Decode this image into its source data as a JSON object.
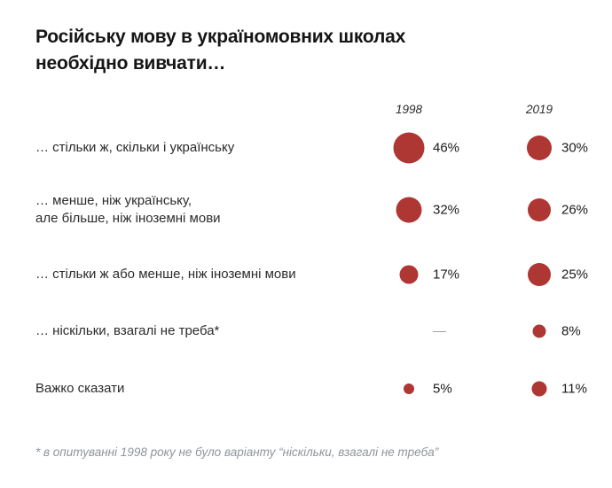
{
  "title": {
    "line1": "Російську мову в україномовних школах",
    "line2": "необхідно вивчати…"
  },
  "footnote": "* в опитуванні 1998 року не було варіанту “ніскільки, взагалі не треба”",
  "colors": {
    "bubble": "#AE3633",
    "title_text": "#151515",
    "label_text": "#2b2b2b",
    "footnote_text": "#8e959b",
    "missing_dash": "#9ba1a6"
  },
  "missing_marker": "—",
  "chart_data": {
    "type": "bubble",
    "title": "Російську мову в україномовних школах необхідно вивчати…",
    "columns": [
      "1998",
      "2019"
    ],
    "unit": "%",
    "size_encoding": "bubble area proportional to percentage",
    "legend_position": "none",
    "rows": [
      {
        "label": "… стільки ж, скільки і українську",
        "values": [
          46,
          30
        ]
      },
      {
        "label": "… менше, ніж українську,\nале більше, ніж іноземні мови",
        "values": [
          32,
          26
        ]
      },
      {
        "label": "… стільки ж або менше, ніж іноземні мови",
        "values": [
          17,
          25
        ]
      },
      {
        "label": "… ніскільки, взагалі не треба*",
        "values": [
          null,
          8
        ]
      },
      {
        "label": "Важко сказати",
        "values": [
          5,
          11
        ]
      }
    ]
  }
}
